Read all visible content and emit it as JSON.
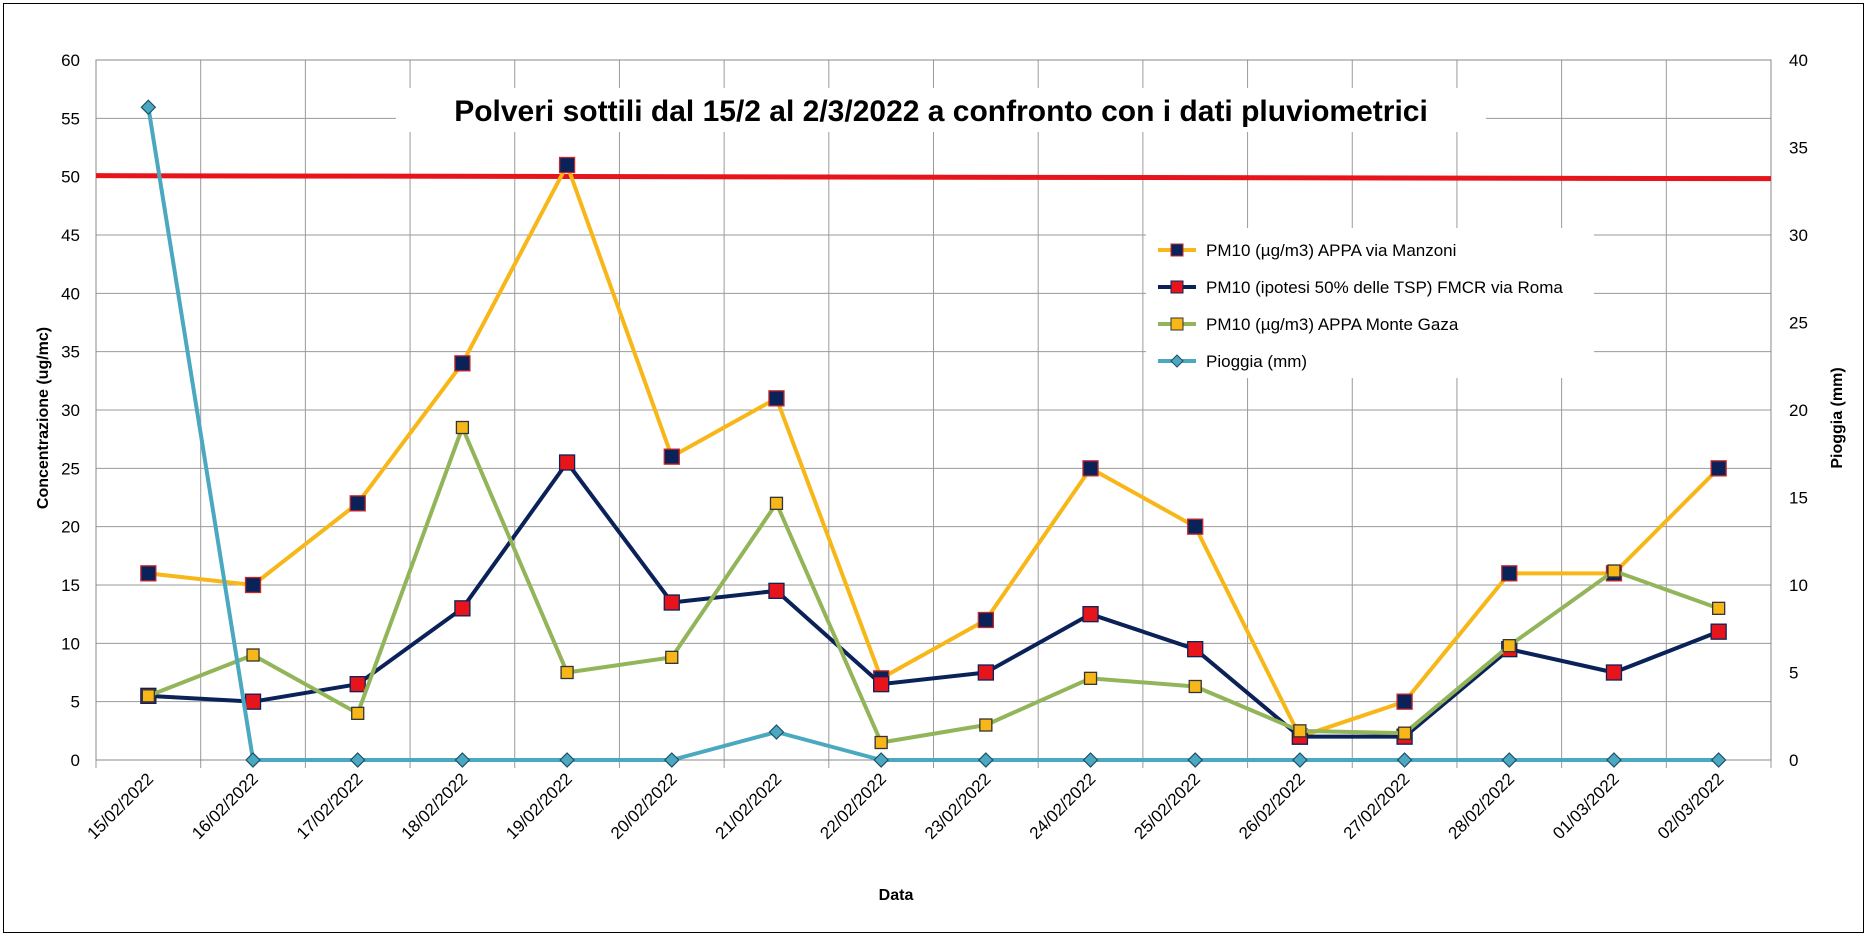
{
  "chart_data": {
    "type": "line",
    "title": "Polveri sottili dal 15/2 al 2/3/2022 a confronto con i dati pluviometrici",
    "xlabel": "Data",
    "ylabel": "Concentrazione (ug/mc)",
    "y2label": "Pioggia (mm)",
    "ylim": [
      0,
      60
    ],
    "y2lim": [
      0,
      40
    ],
    "yticks": [
      0,
      5,
      10,
      15,
      20,
      25,
      30,
      35,
      40,
      45,
      50,
      55,
      60
    ],
    "y2ticks": [
      0,
      5,
      10,
      15,
      20,
      25,
      30,
      35,
      40
    ],
    "grid": true,
    "legend_position": "upper-right",
    "categories": [
      "15/02/2022",
      "16/02/2022",
      "17/02/2022",
      "18/02/2022",
      "19/02/2022",
      "20/02/2022",
      "21/02/2022",
      "22/02/2022",
      "23/02/2022",
      "24/02/2022",
      "25/02/2022",
      "26/02/2022",
      "27/02/2022",
      "28/02/2022",
      "01/03/2022",
      "02/03/2022"
    ],
    "threshold": {
      "value": 50,
      "color": "#e8141c"
    },
    "series": [
      {
        "name": "PM10 (µg/m3) APPA via Manzoni",
        "axis": "left",
        "line_color": "#f7b718",
        "marker_fill": "#0b2259",
        "marker_border": "#c0282d",
        "values": [
          16,
          15,
          22,
          34,
          51,
          26,
          31,
          7,
          12,
          25,
          20,
          2,
          5,
          16,
          16,
          25
        ]
      },
      {
        "name": "PM10 (ipotesi 50% delle TSP) FMCR  via Roma",
        "axis": "left",
        "line_color": "#0b2259",
        "marker_fill": "#e8141c",
        "marker_border": "#0b2259",
        "values": [
          5.5,
          5,
          6.5,
          13,
          25.5,
          13.5,
          14.5,
          6.5,
          7.5,
          12.5,
          9.5,
          2,
          2,
          9.5,
          7.5,
          11
        ]
      },
      {
        "name": "PM10 (µg/m3) APPA Monte Gaza",
        "axis": "left",
        "line_color": "#93b55a",
        "marker_fill": "#f7b718",
        "marker_border": "#333333",
        "values": [
          5.5,
          9,
          4,
          28.5,
          7.5,
          8.8,
          22,
          1.5,
          3,
          7,
          6.3,
          2.5,
          2.3,
          9.8,
          16.2,
          13
        ]
      },
      {
        "name": "Pioggia (mm)",
        "axis": "right",
        "line_color": "#4aa8c0",
        "marker_fill": "#4aa8c0",
        "marker_border": "#1e4f66",
        "values": [
          37.3,
          0,
          0,
          0,
          0,
          0,
          1.6,
          0,
          0,
          0,
          0,
          0,
          0,
          0,
          0,
          0
        ]
      }
    ]
  }
}
